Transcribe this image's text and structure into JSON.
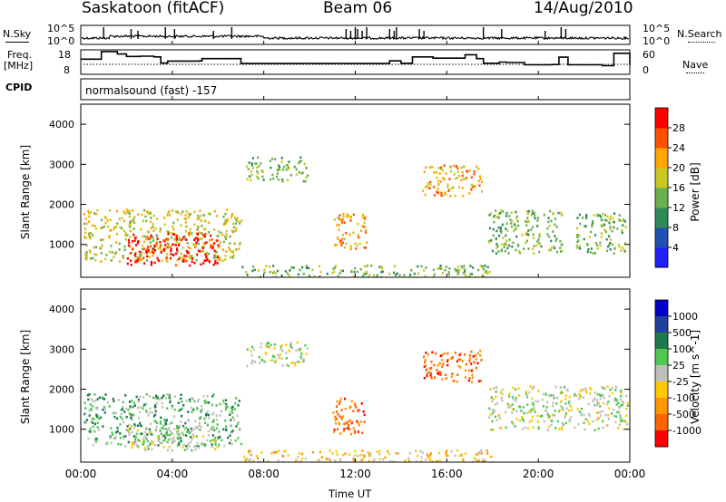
{
  "header": {
    "station": "Saskatoon (fitACF)",
    "beam": "Beam 06",
    "date": "14/Aug/2010"
  },
  "strip_labels": {
    "nsky": "N.Sky",
    "nsky_ticks": [
      "10^5",
      "10^0"
    ],
    "nsearch": "N.Search",
    "nsearch_ticks": [
      "10^5",
      "10^0"
    ],
    "freq": "Freq.",
    "freq_unit": "[MHz]",
    "freq_ticks": [
      "18",
      "8"
    ],
    "nave": "Nave",
    "nave_ticks": [
      "60",
      "0"
    ],
    "cpid": "CPID",
    "cpid_value": "normalsound (fast) -157"
  },
  "colors": {
    "power_scale": [
      "#2020ff",
      "#2050b0",
      "#2e8b57",
      "#6ab04c",
      "#c8c820",
      "#ffa500",
      "#ff5000",
      "#ff0000"
    ],
    "velocity_scale": [
      "#0000c8",
      "#2040a0",
      "#1e7850",
      "#50c850",
      "#c0c0b8",
      "#ffc800",
      "#ff9600",
      "#ff6400",
      "#ff0000"
    ]
  },
  "chart_data": [
    {
      "type": "line",
      "title": "Saskatoon (fitACF)",
      "xlabel": "Time UT",
      "ylabel": "N.Sky / N.Search",
      "x_ticks": [
        "00:00",
        "04:00",
        "08:00",
        "12:00",
        "16:00",
        "20:00",
        "00:00"
      ],
      "y_ticks": [
        "10^5",
        "10^0"
      ],
      "yscale": "log"
    },
    {
      "type": "line",
      "ylabel": "Freq. [MHz] / Nave",
      "x_ticks": [
        "00:00",
        "04:00",
        "08:00",
        "12:00",
        "16:00",
        "20:00",
        "00:00"
      ],
      "left_ylim": [
        8,
        18
      ],
      "right_ylim": [
        0,
        60
      ],
      "freq_series": {
        "x": [
          0.0,
          0.9,
          1.6,
          2.0,
          2.6,
          3.2,
          3.5,
          3.8,
          5.2,
          5.3,
          7.0,
          9.5,
          13.0,
          13.5,
          14.0,
          14.5,
          15.4,
          16.8,
          17.3,
          17.6,
          18.3,
          18.6,
          19.4,
          20.6,
          20.9,
          21.3,
          21.9,
          22.8,
          23.3,
          24.0
        ],
        "y": [
          14.2,
          17.3,
          16.3,
          15.3,
          15.4,
          15.1,
          12.6,
          13.4,
          13.5,
          14.4,
          12.4,
          12.4,
          12.4,
          13.5,
          12.5,
          15.1,
          14.6,
          16.0,
          14.4,
          12.5,
          13.0,
          12.8,
          11.9,
          12.0,
          15.0,
          11.9,
          11.9,
          11.5,
          16.6,
          11.8
        ]
      },
      "nave_series": {
        "x": [
          0,
          24
        ],
        "y": [
          18,
          18
        ]
      }
    },
    {
      "type": "heatmap",
      "title": "Power",
      "xlabel": "Time UT",
      "ylabel": "Slant Range [km]",
      "x_ticks": [
        "00:00",
        "04:00",
        "08:00",
        "12:00",
        "16:00",
        "20:00",
        "00:00"
      ],
      "xlim": [
        0,
        24
      ],
      "ylim": [
        180,
        4500
      ],
      "y_ticks": [
        "1000",
        "2000",
        "3000",
        "4000"
      ],
      "colorbar": {
        "label": "Power [dB]",
        "ticks": [
          "4",
          "8",
          "12",
          "16",
          "20",
          "24",
          "28"
        ]
      },
      "regions": [
        {
          "t0": 0.1,
          "t1": 7.0,
          "r0": 600,
          "r1": 1900,
          "level": 4
        },
        {
          "t0": 2.0,
          "t1": 6.0,
          "r0": 500,
          "r1": 1300,
          "level": 7
        },
        {
          "t0": 7.0,
          "t1": 18.0,
          "r0": 180,
          "r1": 500,
          "level": 3
        },
        {
          "t0": 7.2,
          "t1": 9.9,
          "r0": 2600,
          "r1": 3200,
          "level": 3
        },
        {
          "t0": 11.0,
          "t1": 12.5,
          "r0": 900,
          "r1": 1800,
          "level": 5
        },
        {
          "t0": 14.9,
          "t1": 17.5,
          "r0": 2200,
          "r1": 3000,
          "level": 5
        },
        {
          "t0": 17.8,
          "t1": 21.0,
          "r0": 800,
          "r1": 1900,
          "level": 3
        },
        {
          "t0": 21.6,
          "t1": 23.9,
          "r0": 800,
          "r1": 1800,
          "level": 3
        }
      ]
    },
    {
      "type": "heatmap",
      "title": "Velocity",
      "xlabel": "Time UT",
      "ylabel": "Slant Range [km]",
      "x_ticks": [
        "00:00",
        "04:00",
        "08:00",
        "12:00",
        "16:00",
        "20:00",
        "00:00"
      ],
      "xlim": [
        0,
        24
      ],
      "ylim": [
        180,
        4500
      ],
      "y_ticks": [
        "1000",
        "2000",
        "3000",
        "4000"
      ],
      "colorbar": {
        "label": "Velocity [m s^-1]",
        "ticks": [
          "1000",
          "500",
          "100",
          "25",
          "-25",
          "-100",
          "-500",
          "-1000"
        ]
      },
      "regions": [
        {
          "t0": 0.1,
          "t1": 7.0,
          "r0": 600,
          "r1": 1900,
          "level": 3
        },
        {
          "t0": 2.0,
          "t1": 6.0,
          "r0": 500,
          "r1": 1100,
          "level": 4
        },
        {
          "t0": 7.0,
          "t1": 18.0,
          "r0": 180,
          "r1": 500,
          "level": 5
        },
        {
          "t0": 7.2,
          "t1": 9.9,
          "r0": 2600,
          "r1": 3200,
          "level": 4
        },
        {
          "t0": 11.0,
          "t1": 12.5,
          "r0": 900,
          "r1": 1800,
          "level": 7
        },
        {
          "t0": 14.9,
          "t1": 17.5,
          "r0": 2200,
          "r1": 3000,
          "level": 7
        },
        {
          "t0": 17.8,
          "t1": 23.9,
          "r0": 1000,
          "r1": 2100,
          "level": 4
        }
      ]
    }
  ]
}
